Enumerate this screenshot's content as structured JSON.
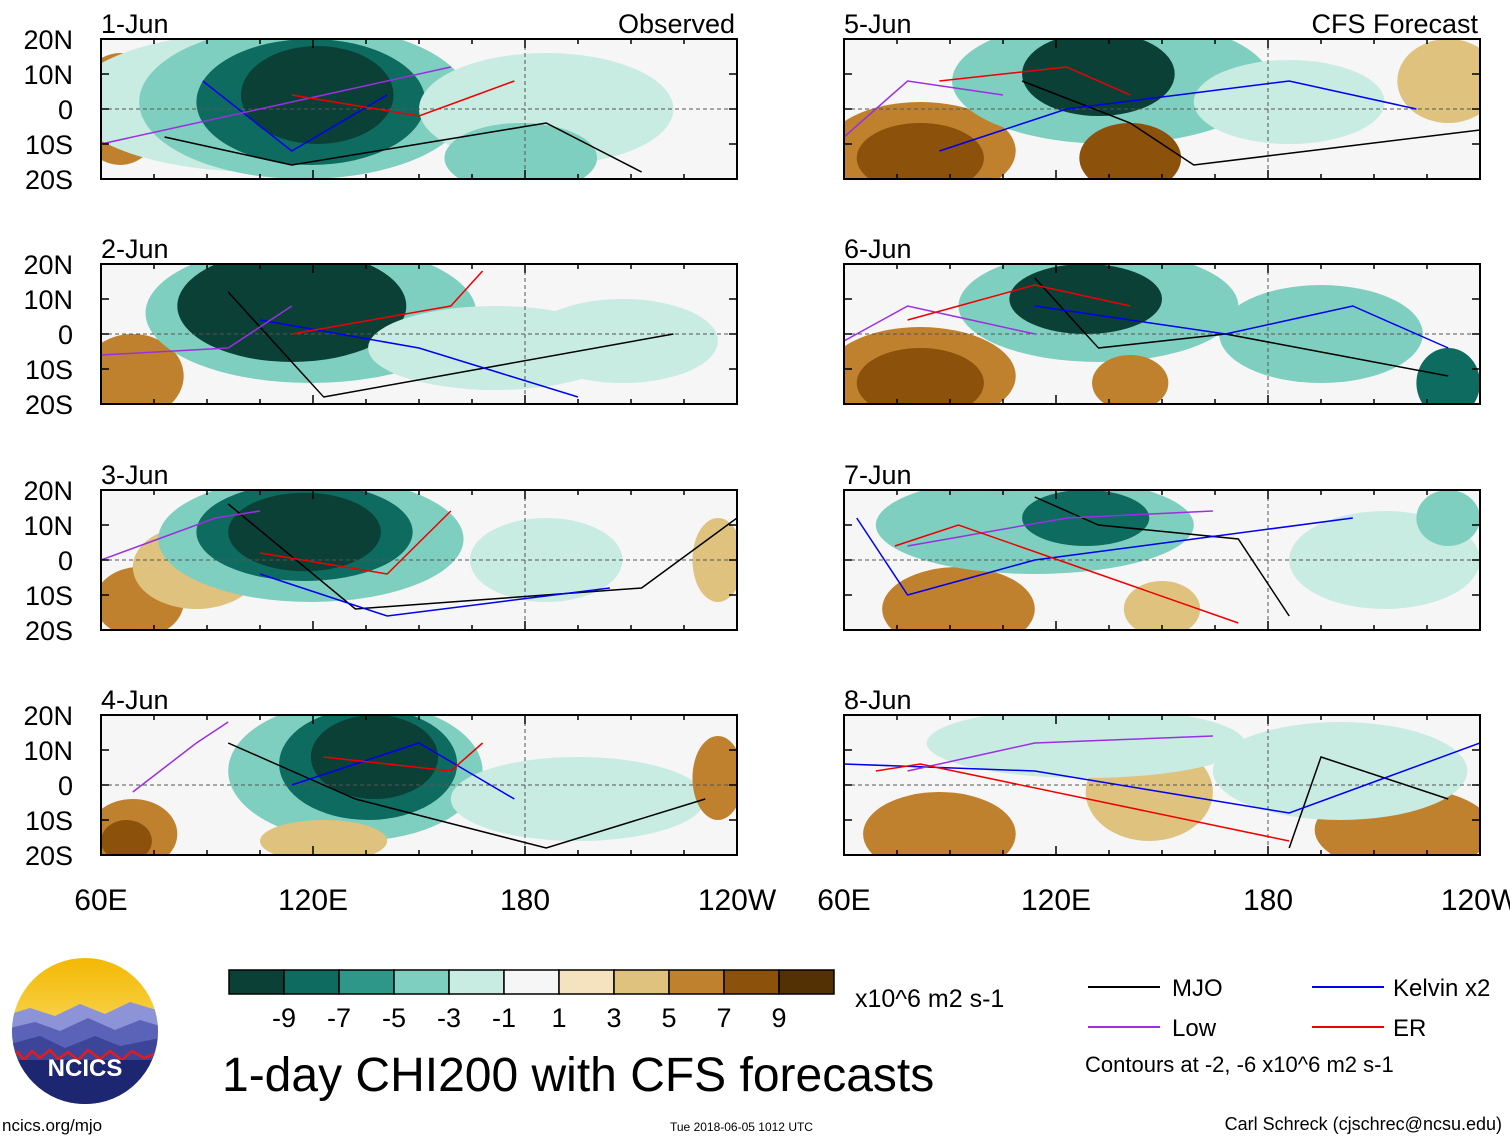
{
  "figure_title": "1-day CHI200 with CFS forecasts",
  "chart_data": {
    "type": "heatmap",
    "variable": "CHI200",
    "panel_columns": [
      {
        "label": "Observed",
        "panels": [
          "1-Jun",
          "2-Jun",
          "3-Jun",
          "4-Jun"
        ]
      },
      {
        "label": "CFS Forecast",
        "panels": [
          "5-Jun",
          "6-Jun",
          "7-Jun",
          "8-Jun"
        ]
      }
    ],
    "x_axis": {
      "tick_labels": [
        "60E",
        "120E",
        "180",
        "120W"
      ],
      "range": [
        "60E",
        "120W"
      ]
    },
    "y_axis": {
      "tick_labels": [
        "20N",
        "10N",
        "0",
        "10S",
        "20S"
      ],
      "range": [
        "20S",
        "20N"
      ]
    },
    "colorbar": {
      "units": "x10^6 m2 s-1",
      "tick_labels": [
        "-9",
        "-7",
        "-5",
        "-3",
        "-1",
        "1",
        "3",
        "5",
        "7",
        "9"
      ],
      "colors": [
        "#0b4037",
        "#0e6b60",
        "#2f978a",
        "#7ecfbf",
        "#c8ebe2",
        "#f6f6f6",
        "#f5e3bf",
        "#dfc27d",
        "#bf812d",
        "#8c510a",
        "#543005"
      ]
    },
    "contour_legend": [
      {
        "label": "MJO",
        "color": "#000000"
      },
      {
        "label": "Kelvin x2",
        "color": "#0000ee"
      },
      {
        "label": "Low",
        "color": "#9a30e0"
      },
      {
        "label": "ER",
        "color": "#ee0000"
      }
    ],
    "contour_note": "Contours at -2, -6 x10^6 m2 s-1"
  },
  "logo_text": "NCICS",
  "footer": {
    "site": "ncics.org/mjo",
    "timestamp": "Tue 2018-06-05 1012 UTC",
    "author": "Carl Schreck (cjschrec@ncsu.edu)"
  }
}
